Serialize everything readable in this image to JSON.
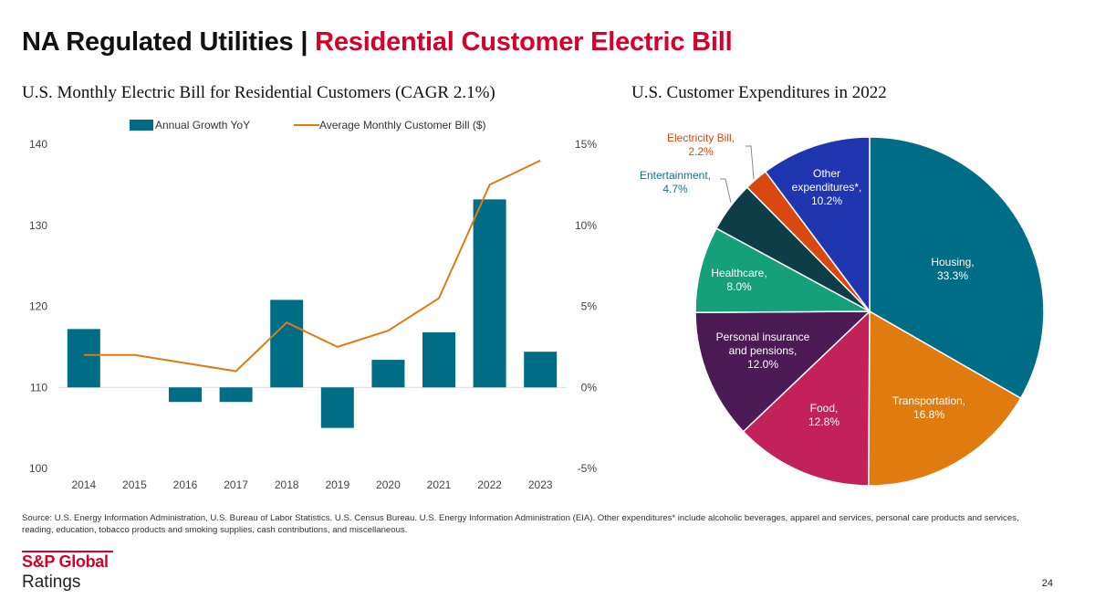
{
  "header": {
    "title_main": "NA Regulated Utilities",
    "title_sep": "|",
    "title_accent": "Residential Customer Electric Bill"
  },
  "colors": {
    "accent": "#d6002a",
    "bar": "#006d87",
    "line": "#e07b10"
  },
  "chart_data": [
    {
      "type": "bar",
      "title": "U.S. Monthly Electric Bill for Residential Customers (CAGR 2.1%)",
      "categories": [
        "2014",
        "2015",
        "2016",
        "2017",
        "2018",
        "2019",
        "2020",
        "2021",
        "2022",
        "2023"
      ],
      "series": [
        {
          "name": "Annual Growth YoY",
          "type": "bar",
          "axis": "right",
          "unit": "%",
          "values": [
            3.6,
            0.0,
            -0.9,
            -0.9,
            5.4,
            -2.5,
            1.7,
            3.4,
            11.6,
            2.2
          ]
        },
        {
          "name": "Average Monthly Customer Bill ($)",
          "type": "line",
          "axis": "left",
          "unit": "$",
          "values": [
            114.0,
            114.0,
            113.0,
            112.0,
            118.0,
            115.0,
            117.0,
            121.0,
            135.0,
            138.0
          ]
        }
      ],
      "left_axis": {
        "ylim": [
          100,
          140
        ],
        "ticks": [
          "100",
          "110",
          "120",
          "130",
          "140"
        ],
        "tick_values": [
          100,
          110,
          120,
          130,
          140
        ]
      },
      "right_axis": {
        "ylim": [
          -5,
          15
        ],
        "ticks": [
          "-5%",
          "0%",
          "5%",
          "10%",
          "15%"
        ],
        "tick_values": [
          -5,
          0,
          5,
          10,
          15
        ]
      },
      "legend_position": "top"
    },
    {
      "type": "pie",
      "title": "U.S. Customer Expenditures in 2022",
      "slices": [
        {
          "label_lines": [
            "Housing,",
            "33.3%"
          ],
          "value": 33.3,
          "color": "#006d87",
          "label_color": "#ffffff"
        },
        {
          "label_lines": [
            "Transportation,",
            "16.8%"
          ],
          "value": 16.8,
          "color": "#e07b10",
          "label_color": "#ffffff"
        },
        {
          "label_lines": [
            "Food,",
            "12.8%"
          ],
          "value": 12.8,
          "color": "#c2215a",
          "label_color": "#ffffff"
        },
        {
          "label_lines": [
            "Personal insurance",
            "and pensions,",
            "12.0%"
          ],
          "value": 12.0,
          "color": "#4c1a55",
          "label_color": "#ffffff"
        },
        {
          "label_lines": [
            "Healthcare,",
            "8.0%"
          ],
          "value": 8.0,
          "color": "#16a079",
          "label_color": "#ffffff"
        },
        {
          "label_lines": [
            "Entertainment,",
            "4.7%"
          ],
          "value": 4.7,
          "color": "#0d3d47",
          "label_color": "#1d6f86"
        },
        {
          "label_lines": [
            "Electricity Bill,",
            "2.2%"
          ],
          "value": 2.2,
          "color": "#d9480f",
          "label_color": "#d9480f"
        },
        {
          "label_lines": [
            "Other",
            "expenditures*,",
            "10.2%"
          ],
          "value": 10.2,
          "color": "#2035b0",
          "label_color": "#ffffff"
        }
      ]
    }
  ],
  "footer": {
    "source": "Source: U.S. Energy Information Administration,  U.S. Bureau of Labor Statistics. U.S. Census Bureau. U.S. Energy Information Administration (EIA). Other expenditures* include alcoholic beverages, apparel and services, personal care products and services, reading, education, tobacco products and smoking supplies, cash contributions, and miscellaneous.",
    "logo_top": "S&P Global",
    "logo_bottom": "Ratings",
    "page_number": "24"
  }
}
